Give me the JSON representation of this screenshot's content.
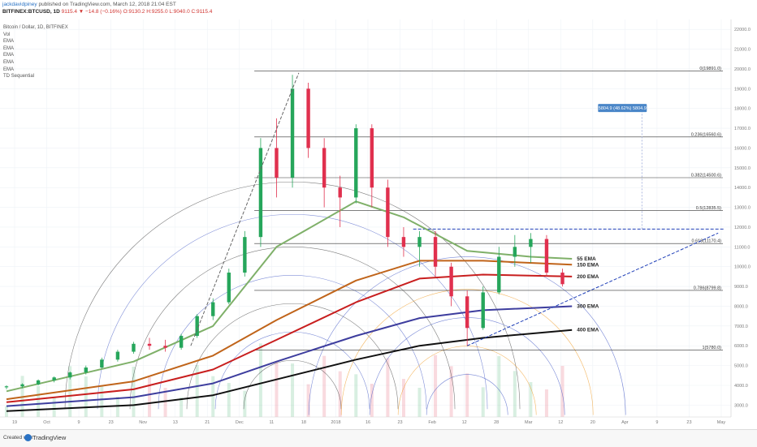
{
  "header": {
    "author": "jackdavidpiney",
    "published": "published on TradingView.com, March 12, 2018 21:04 EST",
    "symbol": "BITFINEX:BTCUSD, 1D",
    "ohlc": "9115.4 ▼ −14.8 (−0.16%) O:9130.2 H:9255.0 L:9040.0 C:9115.4"
  },
  "legend": [
    "Bitcoin / Dollar, 1D, BITFINEX",
    "Vol",
    "EMA",
    "EMA",
    "EMA",
    "EMA",
    "EMA",
    "TD Sequential"
  ],
  "footer": {
    "created": "Created with",
    "brand": "TradingView"
  },
  "colors": {
    "up": "#26a65b",
    "down": "#e0304e",
    "ema55": "#7fb069",
    "ema150": "#c0641a",
    "ema200": "#c81e1e",
    "ema300": "#3d3d9e",
    "ema400": "#111111",
    "fib_dark": "#444444",
    "fib_blue": "#4a5fc8",
    "fib_orange": "#f0a030",
    "target": "#4a86c8"
  },
  "chart_data": {
    "type": "candlestick",
    "x_tick_labels": [
      "19",
      "Oct",
      "9",
      "23",
      "Nov",
      "13",
      "21",
      "Dec",
      "11",
      "18",
      "2018",
      "16",
      "23",
      "Feb",
      "12",
      "28",
      "Mar",
      "12",
      "20",
      "Apr",
      "9",
      "23",
      "May"
    ],
    "y_tick_labels": [
      "22000.0",
      "21000.0",
      "20000.0",
      "19000.0",
      "18000.0",
      "17000.0",
      "16000.0",
      "15000.0",
      "14000.0",
      "13000.0",
      "12000.0",
      "11000.0",
      "10000.0",
      "9000.0",
      "8000.0",
      "7000.0",
      "6000.0",
      "5000.0",
      "4000.0",
      "3000.0"
    ],
    "ylim": [
      2400,
      22500
    ],
    "x_range_days": [
      0,
      226
    ],
    "candles": [
      {
        "d": 0,
        "o": 3900,
        "h": 4000,
        "l": 3800,
        "c": 3950
      },
      {
        "d": 5,
        "o": 3950,
        "h": 4100,
        "l": 3850,
        "c": 4050
      },
      {
        "d": 10,
        "o": 4050,
        "h": 4300,
        "l": 4000,
        "c": 4250
      },
      {
        "d": 15,
        "o": 4250,
        "h": 4450,
        "l": 4150,
        "c": 4400
      },
      {
        "d": 20,
        "o": 4400,
        "h": 4700,
        "l": 4300,
        "c": 4650
      },
      {
        "d": 25,
        "o": 4650,
        "h": 5000,
        "l": 4550,
        "c": 4900
      },
      {
        "d": 30,
        "o": 4900,
        "h": 5400,
        "l": 4850,
        "c": 5300
      },
      {
        "d": 35,
        "o": 5300,
        "h": 5800,
        "l": 5200,
        "c": 5700
      },
      {
        "d": 40,
        "o": 5700,
        "h": 6200,
        "l": 5600,
        "c": 6100
      },
      {
        "d": 45,
        "o": 6100,
        "h": 6400,
        "l": 5800,
        "c": 6000
      },
      {
        "d": 50,
        "o": 6000,
        "h": 6300,
        "l": 5700,
        "c": 5900
      },
      {
        "d": 55,
        "o": 5900,
        "h": 6600,
        "l": 5800,
        "c": 6500
      },
      {
        "d": 60,
        "o": 6500,
        "h": 7600,
        "l": 6400,
        "c": 7500
      },
      {
        "d": 65,
        "o": 7500,
        "h": 8400,
        "l": 7300,
        "c": 8200
      },
      {
        "d": 70,
        "o": 8200,
        "h": 9900,
        "l": 8100,
        "c": 9700
      },
      {
        "d": 75,
        "o": 9700,
        "h": 11800,
        "l": 9500,
        "c": 11500
      },
      {
        "d": 80,
        "o": 11500,
        "h": 16500,
        "l": 11000,
        "c": 16000
      },
      {
        "d": 85,
        "o": 16000,
        "h": 17500,
        "l": 13500,
        "c": 14500
      },
      {
        "d": 90,
        "o": 14500,
        "h": 19700,
        "l": 14000,
        "c": 19000
      },
      {
        "d": 95,
        "o": 19000,
        "h": 19300,
        "l": 15500,
        "c": 16000
      },
      {
        "d": 100,
        "o": 16000,
        "h": 16500,
        "l": 13000,
        "c": 14000
      },
      {
        "d": 105,
        "o": 14000,
        "h": 14600,
        "l": 12000,
        "c": 13500
      },
      {
        "d": 110,
        "o": 13500,
        "h": 17200,
        "l": 13200,
        "c": 17000
      },
      {
        "d": 115,
        "o": 17000,
        "h": 17200,
        "l": 13000,
        "c": 14000
      },
      {
        "d": 120,
        "o": 14000,
        "h": 14400,
        "l": 11000,
        "c": 11500
      },
      {
        "d": 125,
        "o": 11500,
        "h": 12000,
        "l": 10500,
        "c": 11000
      },
      {
        "d": 130,
        "o": 11000,
        "h": 11800,
        "l": 10000,
        "c": 11500
      },
      {
        "d": 135,
        "o": 11500,
        "h": 11800,
        "l": 9500,
        "c": 10000
      },
      {
        "d": 140,
        "o": 10000,
        "h": 10200,
        "l": 8000,
        "c": 8500
      },
      {
        "d": 145,
        "o": 8500,
        "h": 8800,
        "l": 6000,
        "c": 6900
      },
      {
        "d": 150,
        "o": 6900,
        "h": 9000,
        "l": 6800,
        "c": 8700
      },
      {
        "d": 155,
        "o": 8700,
        "h": 11000,
        "l": 8600,
        "c": 10500
      },
      {
        "d": 160,
        "o": 10500,
        "h": 11600,
        "l": 10000,
        "c": 11000
      },
      {
        "d": 165,
        "o": 11000,
        "h": 11700,
        "l": 10200,
        "c": 11400
      },
      {
        "d": 170,
        "o": 11400,
        "h": 11600,
        "l": 9500,
        "c": 9700
      },
      {
        "d": 175,
        "o": 9700,
        "h": 9900,
        "l": 9000,
        "c": 9115
      }
    ],
    "emas": [
      {
        "name": "55 EMA",
        "color": "#7fb069",
        "points": [
          [
            0,
            3700
          ],
          [
            40,
            5200
          ],
          [
            65,
            7000
          ],
          [
            85,
            11000
          ],
          [
            110,
            13300
          ],
          [
            125,
            12500
          ],
          [
            145,
            10800
          ],
          [
            165,
            10500
          ],
          [
            178,
            10400
          ]
        ]
      },
      {
        "name": "150 EMA",
        "color": "#c0641a",
        "points": [
          [
            0,
            3300
          ],
          [
            40,
            4200
          ],
          [
            65,
            5500
          ],
          [
            85,
            7300
          ],
          [
            110,
            9300
          ],
          [
            130,
            10300
          ],
          [
            150,
            10300
          ],
          [
            178,
            10100
          ]
        ]
      },
      {
        "name": "200 EMA",
        "color": "#c81e1e",
        "points": [
          [
            0,
            3150
          ],
          [
            40,
            3800
          ],
          [
            65,
            4800
          ],
          [
            85,
            6300
          ],
          [
            110,
            8200
          ],
          [
            130,
            9400
          ],
          [
            150,
            9600
          ],
          [
            178,
            9500
          ]
        ]
      },
      {
        "name": "300 EMA",
        "color": "#3d3d9e",
        "points": [
          [
            0,
            2950
          ],
          [
            40,
            3400
          ],
          [
            65,
            4100
          ],
          [
            85,
            5200
          ],
          [
            110,
            6500
          ],
          [
            130,
            7400
          ],
          [
            150,
            7800
          ],
          [
            178,
            8000
          ]
        ]
      },
      {
        "name": "400 EMA",
        "color": "#111111",
        "points": [
          [
            0,
            2700
          ],
          [
            40,
            3000
          ],
          [
            65,
            3500
          ],
          [
            85,
            4300
          ],
          [
            110,
            5300
          ],
          [
            130,
            6000
          ],
          [
            150,
            6400
          ],
          [
            178,
            6800
          ]
        ]
      }
    ],
    "fib_levels": [
      {
        "label": "0(19891.0)",
        "value": 19891
      },
      {
        "label": "0.236(16560.6)",
        "value": 16560.6
      },
      {
        "label": "0.382(14500.6)",
        "value": 14500.6
      },
      {
        "label": "0.5(12835.5)",
        "value": 12835.5
      },
      {
        "label": "0.618(11170.4)",
        "value": 11170.4
      },
      {
        "label": "0.786(8799.8)",
        "value": 8799.8
      },
      {
        "label": "1(5780.0)",
        "value": 5780
      }
    ],
    "resistance_level": 11900,
    "target": {
      "label": "5804.9 (48.62%) 5804.9",
      "value": 17900
    }
  }
}
